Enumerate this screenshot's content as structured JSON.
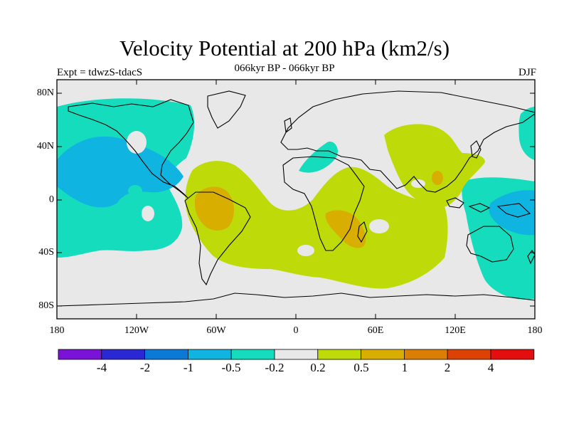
{
  "header": {
    "title": "Velocity Potential at 200 hPa (km2/s)",
    "subtitle": "066kyr BP - 066kyr BP",
    "left_label": "Expt = tdwzS-tdacS",
    "right_label": "DJF"
  },
  "axes": {
    "lat_labels": [
      "80N",
      "40N",
      "0",
      "40S",
      "80S"
    ],
    "lon_labels": [
      "180",
      "120W",
      "60W",
      "0",
      "60E",
      "120E",
      "180"
    ]
  },
  "colorbar": {
    "colors": [
      "#7a12d8",
      "#2a28d4",
      "#0d79d6",
      "#0fb4e0",
      "#14dcbd",
      "#e8e8e8",
      "#bedb09",
      "#d8af00",
      "#db7f04",
      "#dd4205",
      "#e50e0e"
    ],
    "labels": [
      "-4",
      "-2",
      "-1",
      "-0.5",
      "-0.2",
      "0.2",
      "0.5",
      "1",
      "2",
      "4"
    ]
  },
  "map_colors": {
    "ocean_background": "#e8e8e8",
    "negative_weak": "#14dcbd",
    "negative_moderate": "#0fb4e0",
    "positive_weak": "#bedb09",
    "positive_moderate": "#d8af00",
    "coastline": "#000000"
  }
}
